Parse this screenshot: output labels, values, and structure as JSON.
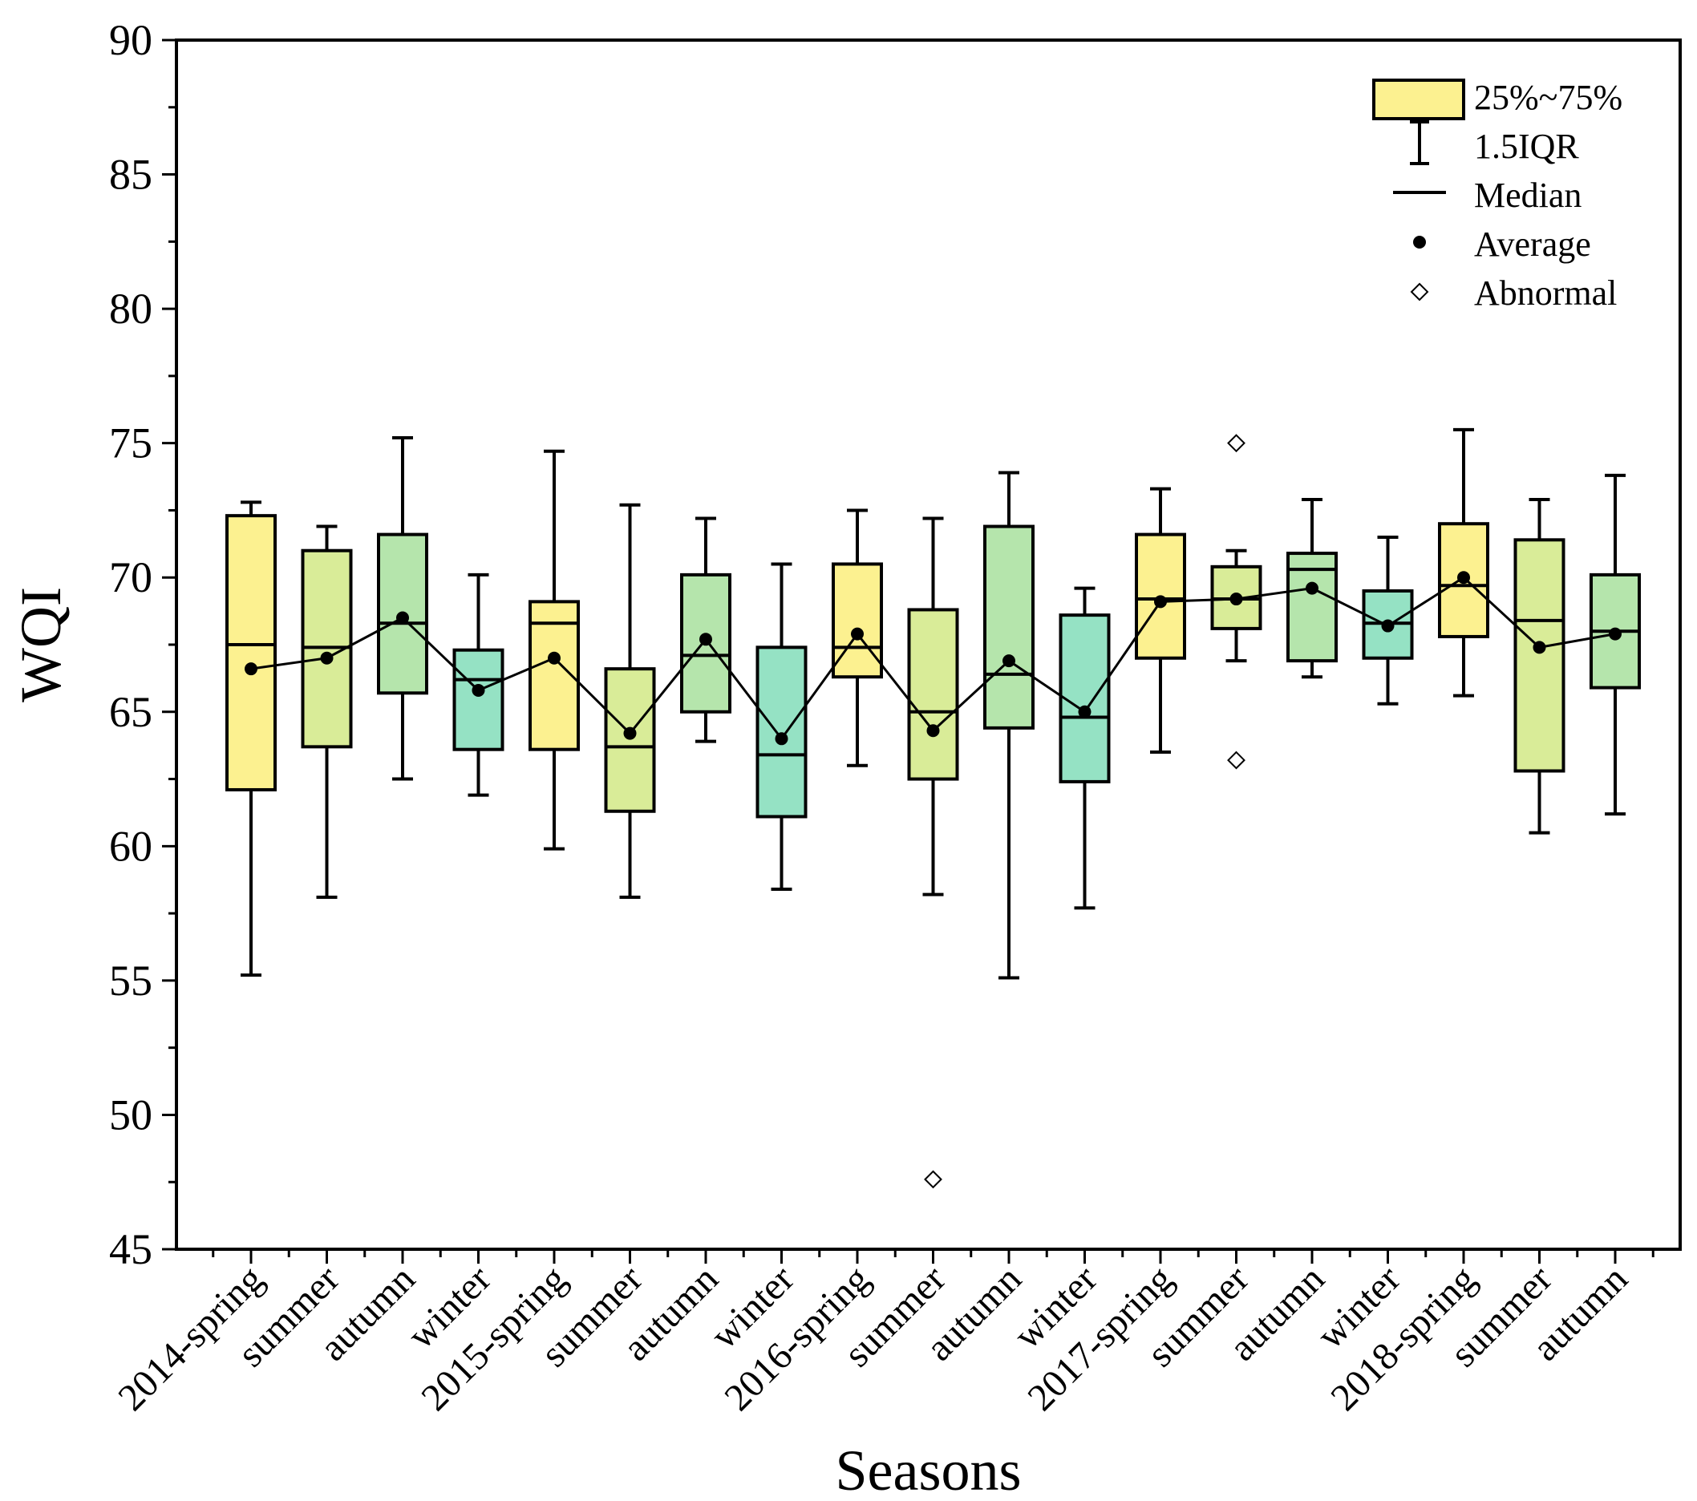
{
  "chart_data": {
    "type": "box",
    "xlabel": "Seasons",
    "ylabel": "WQI",
    "ylim": [
      45,
      90
    ],
    "yticks": [
      45,
      50,
      55,
      60,
      65,
      70,
      75,
      80,
      85,
      90
    ],
    "categories": [
      "2014-spring",
      "summer",
      "autumn",
      "winter",
      "2015-spring",
      "summer",
      "autumn",
      "winter",
      "2016-spring",
      "summer",
      "autumn",
      "winter",
      "2017-spring",
      "summer",
      "autumn",
      "winter",
      "2018-spring",
      "summer",
      "autumn"
    ],
    "series": [
      {
        "name": "2014-spring",
        "whisker_low": 55.2,
        "q1": 62.1,
        "median": 67.5,
        "q3": 72.3,
        "whisker_high": 72.8,
        "mean": 66.6,
        "outliers": []
      },
      {
        "name": "summer",
        "whisker_low": 58.1,
        "q1": 63.7,
        "median": 67.4,
        "q3": 71.0,
        "whisker_high": 71.9,
        "mean": 67.0,
        "outliers": []
      },
      {
        "name": "autumn",
        "whisker_low": 62.5,
        "q1": 65.7,
        "median": 68.3,
        "q3": 71.6,
        "whisker_high": 75.2,
        "mean": 68.5,
        "outliers": []
      },
      {
        "name": "winter",
        "whisker_low": 61.9,
        "q1": 63.6,
        "median": 66.2,
        "q3": 67.3,
        "whisker_high": 70.1,
        "mean": 65.8,
        "outliers": []
      },
      {
        "name": "2015-spring",
        "whisker_low": 59.9,
        "q1": 63.6,
        "median": 68.3,
        "q3": 69.1,
        "whisker_high": 74.7,
        "mean": 67.0,
        "outliers": []
      },
      {
        "name": "summer",
        "whisker_low": 58.1,
        "q1": 61.3,
        "median": 63.7,
        "q3": 66.6,
        "whisker_high": 72.7,
        "mean": 64.2,
        "outliers": []
      },
      {
        "name": "autumn",
        "whisker_low": 63.9,
        "q1": 65.0,
        "median": 67.1,
        "q3": 70.1,
        "whisker_high": 72.2,
        "mean": 67.7,
        "outliers": []
      },
      {
        "name": "winter",
        "whisker_low": 58.4,
        "q1": 61.1,
        "median": 63.4,
        "q3": 67.4,
        "whisker_high": 70.5,
        "mean": 64.0,
        "outliers": []
      },
      {
        "name": "2016-spring",
        "whisker_low": 63.0,
        "q1": 66.3,
        "median": 67.4,
        "q3": 70.5,
        "whisker_high": 72.5,
        "mean": 67.9,
        "outliers": []
      },
      {
        "name": "summer",
        "whisker_low": 58.2,
        "q1": 62.5,
        "median": 65.0,
        "q3": 68.8,
        "whisker_high": 72.2,
        "mean": 64.3,
        "outliers": [
          47.6
        ]
      },
      {
        "name": "autumn",
        "whisker_low": 55.1,
        "q1": 64.4,
        "median": 66.4,
        "q3": 71.9,
        "whisker_high": 73.9,
        "mean": 66.9,
        "outliers": []
      },
      {
        "name": "winter",
        "whisker_low": 57.7,
        "q1": 62.4,
        "median": 64.8,
        "q3": 68.6,
        "whisker_high": 69.6,
        "mean": 65.0,
        "outliers": []
      },
      {
        "name": "2017-spring",
        "whisker_low": 63.5,
        "q1": 67.0,
        "median": 69.2,
        "q3": 71.6,
        "whisker_high": 73.3,
        "mean": 69.1,
        "outliers": []
      },
      {
        "name": "summer",
        "whisker_low": 66.9,
        "q1": 68.1,
        "median": 69.2,
        "q3": 70.4,
        "whisker_high": 71.0,
        "mean": 69.2,
        "outliers": [
          75.0,
          63.2
        ]
      },
      {
        "name": "autumn",
        "whisker_low": 66.3,
        "q1": 66.9,
        "median": 70.3,
        "q3": 70.9,
        "whisker_high": 72.9,
        "mean": 69.6,
        "outliers": []
      },
      {
        "name": "winter",
        "whisker_low": 65.3,
        "q1": 67.0,
        "median": 68.3,
        "q3": 69.5,
        "whisker_high": 71.5,
        "mean": 68.2,
        "outliers": []
      },
      {
        "name": "2018-spring",
        "whisker_low": 65.6,
        "q1": 67.8,
        "median": 69.7,
        "q3": 72.0,
        "whisker_high": 75.5,
        "mean": 70.0,
        "outliers": []
      },
      {
        "name": "summer",
        "whisker_low": 60.5,
        "q1": 62.8,
        "median": 68.4,
        "q3": 71.4,
        "whisker_high": 72.9,
        "mean": 67.4,
        "outliers": []
      },
      {
        "name": "autumn",
        "whisker_low": 61.2,
        "q1": 65.9,
        "median": 68.0,
        "q3": 70.1,
        "whisker_high": 73.8,
        "mean": 67.9,
        "outliers": []
      }
    ],
    "fill_colors": [
      "#fcf190",
      "#d9ec98",
      "#b5e5ac",
      "#95e2c4"
    ],
    "legend": {
      "position": "top-right",
      "entries": [
        "25%~75%",
        "1.5IQR",
        "Median",
        "Average",
        "Abnormal"
      ]
    }
  }
}
